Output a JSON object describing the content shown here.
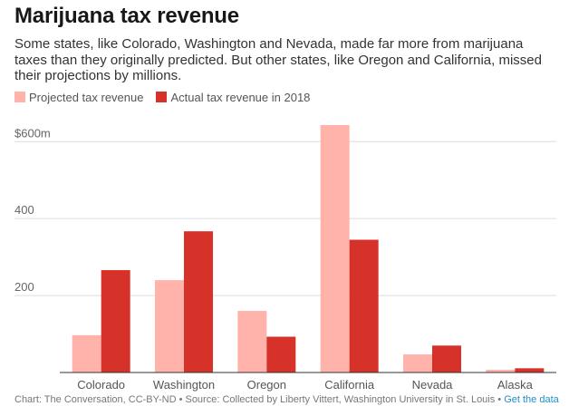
{
  "header": {
    "title": "Marijuana tax revenue",
    "subtitle": "Some states, like Colorado, Washington and Nevada, made far more from marijuana taxes than they originally predicted. But other states, like Oregon and California, missed their projections by millions."
  },
  "legend": {
    "items": [
      {
        "label": "Projected tax revenue",
        "color": "#ffb3aa"
      },
      {
        "label": "Actual tax revenue in 2018",
        "color": "#d63229"
      }
    ]
  },
  "footer": {
    "text": "Chart: The Conversation, CC-BY-ND • Source: Collected by Liberty Vittert, Washington University in St. Louis • ",
    "link_label": "Get the data"
  },
  "chart_data": {
    "type": "bar",
    "categories": [
      "Colorado",
      "Washington",
      "Oregon",
      "California",
      "Nevada",
      "Alaska"
    ],
    "series": [
      {
        "name": "Projected tax revenue",
        "color": "#ffb3aa",
        "values": [
          97,
          240,
          160,
          643,
          47,
          7
        ]
      },
      {
        "name": "Actual tax revenue in 2018",
        "color": "#d63229",
        "values": [
          266,
          367,
          93,
          345,
          70,
          11
        ]
      }
    ],
    "ylim": [
      0,
      643
    ],
    "yticks": [
      200,
      400,
      600
    ],
    "ytick_labels": [
      "200",
      "400",
      "$600m"
    ],
    "grid": true,
    "legend_position": "top-left"
  }
}
